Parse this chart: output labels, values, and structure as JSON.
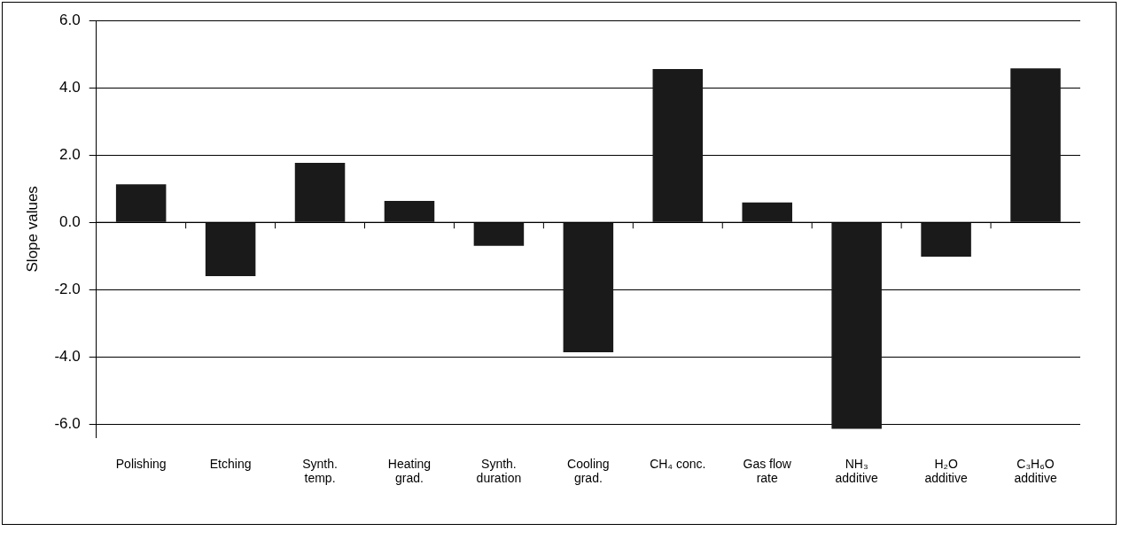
{
  "chart_data": {
    "type": "bar",
    "ylabel": "Slope values",
    "categories": [
      "Polishing",
      "Etching",
      "Synth.\ntemp.",
      "Heating\ngrad.",
      "Synth.\nduration",
      "Cooling\ngrad.",
      "CH₄ conc.",
      "Gas flow\nrate",
      "NH₃\nadditive",
      "H₂O\nadditive",
      "C₃H₆O\nadditive"
    ],
    "values": [
      1.13,
      -1.6,
      1.77,
      0.64,
      -0.7,
      -3.86,
      4.56,
      0.59,
      -6.14,
      -1.02,
      4.58
    ],
    "color": "#1a1a1a",
    "ylim": [
      -6.4,
      6
    ],
    "yticks": [
      {
        "value": -6,
        "label": "-6.0"
      },
      {
        "value": -4,
        "label": "-4.0"
      },
      {
        "value": -2,
        "label": "-2.0"
      },
      {
        "value": 0,
        "label": "0.0"
      },
      {
        "value": 2,
        "label": "2.0"
      },
      {
        "value": 4,
        "label": "4.0"
      },
      {
        "value": 6,
        "label": "6.0"
      }
    ],
    "grid": "y",
    "legend": false
  }
}
